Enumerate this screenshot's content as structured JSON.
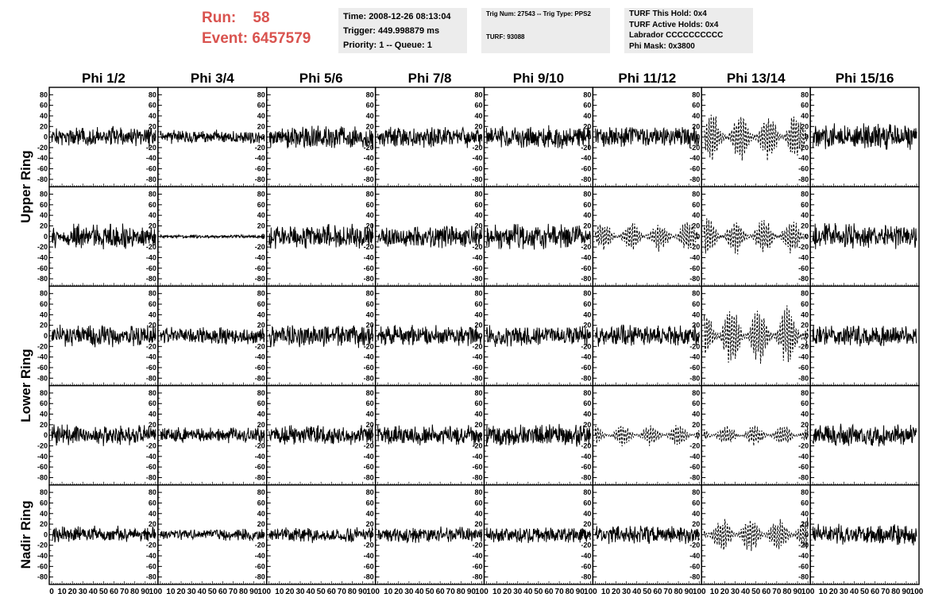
{
  "header": {
    "run_label": "Run:",
    "run_value": "58",
    "event_label": "Event:",
    "event_value": "6457579",
    "time": "Time: 2008-12-26 08:13:04",
    "trigger": "Trigger: 449.998879 ms",
    "priority": "Priority: 1 -- Queue: 1",
    "trig_num": "Trig Num: 27543 -- Trig Type: PPS2",
    "turf": "TURF: 93088",
    "turf_this_hold": "TURF This Hold: 0x4",
    "turf_active_holds": "TURF Active Holds: 0x4",
    "labrador": "Labrador CCCCCCCCCC",
    "phi_mask": "Phi Mask: 0x3800"
  },
  "colors": {
    "run_text": "#d9534f",
    "info_bg": "#ececec",
    "trace": "#000000"
  },
  "chart_data": {
    "type": "line",
    "columns": [
      "Phi 1/2",
      "Phi 3/4",
      "Phi 5/6",
      "Phi 7/8",
      "Phi 9/10",
      "Phi 11/12",
      "Phi 13/14",
      "Phi 15/16"
    ],
    "ring_labels": [
      {
        "text": "Upper Ring",
        "rows": [
          0,
          1
        ]
      },
      {
        "text": "Lower Ring",
        "rows": [
          2,
          3
        ]
      },
      {
        "text": "Nadir Ring",
        "rows": [
          4
        ]
      }
    ],
    "row_count": 5,
    "xlim": [
      0,
      100
    ],
    "ylim": [
      -85,
      85
    ],
    "y_ticks": [
      "80",
      "60",
      "40",
      "20",
      "0",
      "-20",
      "-40",
      "-60",
      "-80"
    ],
    "x_tick_labels": [
      "0",
      "10",
      "20",
      "30",
      "40",
      "50",
      "60",
      "70",
      "80",
      "90",
      "100"
    ],
    "panels": [
      [
        {
          "amp": 18,
          "dashed": false
        },
        {
          "amp": 12,
          "dashed": false
        },
        {
          "amp": 20,
          "dashed": false
        },
        {
          "amp": 18,
          "dashed": false
        },
        {
          "amp": 20,
          "dashed": false
        },
        {
          "amp": 18,
          "dashed": false
        },
        {
          "amp": 40,
          "dashed": true
        },
        {
          "amp": 24,
          "dashed": false
        }
      ],
      [
        {
          "amp": 22,
          "dashed": false
        },
        {
          "amp": 3,
          "dashed": false
        },
        {
          "amp": 22,
          "dashed": false
        },
        {
          "amp": 20,
          "dashed": false
        },
        {
          "amp": 22,
          "dashed": false
        },
        {
          "amp": 25,
          "dashed": true
        },
        {
          "amp": 30,
          "dashed": true
        },
        {
          "amp": 22,
          "dashed": false
        }
      ],
      [
        {
          "amp": 20,
          "dashed": false
        },
        {
          "amp": 15,
          "dashed": false
        },
        {
          "amp": 20,
          "dashed": false
        },
        {
          "amp": 18,
          "dashed": false
        },
        {
          "amp": 18,
          "dashed": false
        },
        {
          "amp": 20,
          "dashed": false
        },
        {
          "amp": 50,
          "dashed": true
        },
        {
          "amp": 20,
          "dashed": false
        }
      ],
      [
        {
          "amp": 18,
          "dashed": false
        },
        {
          "amp": 14,
          "dashed": false
        },
        {
          "amp": 18,
          "dashed": false
        },
        {
          "amp": 18,
          "dashed": false
        },
        {
          "amp": 20,
          "dashed": false
        },
        {
          "amp": 18,
          "dashed": true
        },
        {
          "amp": 18,
          "dashed": true
        },
        {
          "amp": 20,
          "dashed": false
        }
      ],
      [
        {
          "amp": 15,
          "dashed": false
        },
        {
          "amp": 10,
          "dashed": false
        },
        {
          "amp": 14,
          "dashed": false
        },
        {
          "amp": 14,
          "dashed": false
        },
        {
          "amp": 14,
          "dashed": false
        },
        {
          "amp": 16,
          "dashed": false
        },
        {
          "amp": 30,
          "dashed": true
        },
        {
          "amp": 18,
          "dashed": false
        }
      ]
    ]
  }
}
